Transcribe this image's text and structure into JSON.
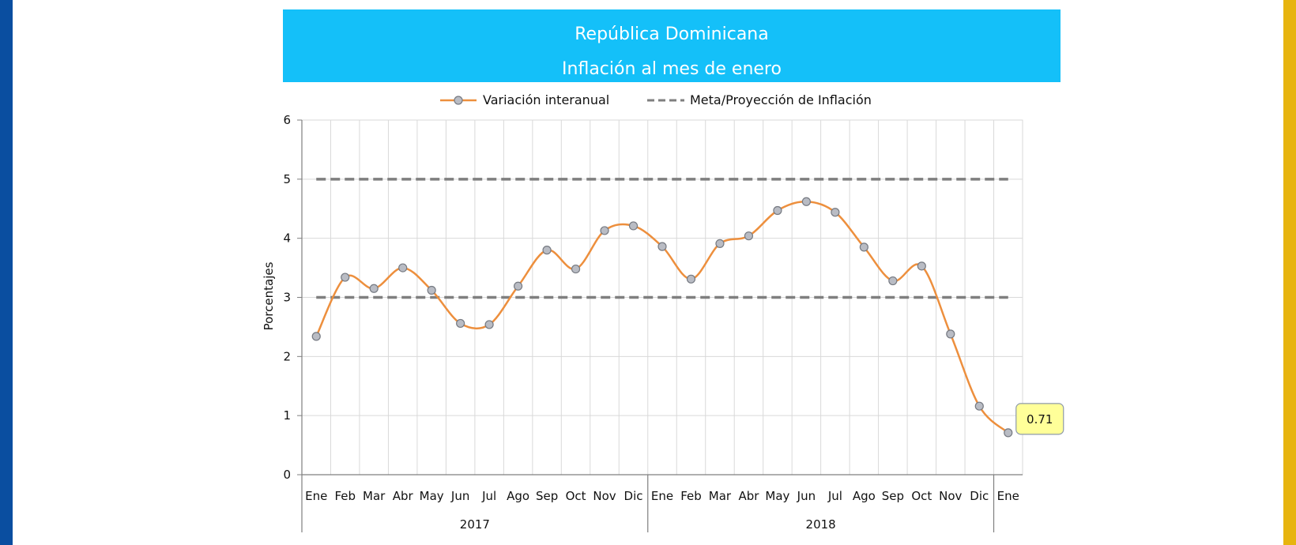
{
  "colors": {
    "title_bg": "#14c0f9",
    "series_line": "#ed8f3d",
    "series_marker": "#b9bcc4",
    "target_line": "#7f7f7f",
    "left_bar": "#0a4ea0",
    "right_bar": "#e7b40f",
    "callout_bg": "#ffff99"
  },
  "header": {
    "title": "República Dominicana",
    "subtitle": "Inflación al mes de enero"
  },
  "chart_data": {
    "type": "line",
    "title": "República Dominicana",
    "subtitle": "Inflación al mes de enero",
    "ylabel": "Porcentajes",
    "xlabel": "",
    "ylim": [
      0,
      6
    ],
    "yticks": [
      "0",
      "1",
      "2",
      "3",
      "4",
      "5",
      "6"
    ],
    "categories": [
      "Ene",
      "Feb",
      "Mar",
      "Abr",
      "May",
      "Jun",
      "Jul",
      "Ago",
      "Sep",
      "Oct",
      "Nov",
      "Dic",
      "Ene",
      "Feb",
      "Mar",
      "Abr",
      "May",
      "Jun",
      "Jul",
      "Ago",
      "Sep",
      "Oct",
      "Nov",
      "Dic",
      "Ene"
    ],
    "year_groups": [
      {
        "label": "2017",
        "start": 0,
        "end": 11
      },
      {
        "label": "2018",
        "start": 12,
        "end": 23
      }
    ],
    "grid": true,
    "legend_position": "top",
    "series": [
      {
        "name": "Variación interanual",
        "style": "smooth-line-markers",
        "values": [
          2.34,
          3.34,
          3.15,
          3.5,
          3.12,
          2.56,
          2.54,
          3.19,
          3.8,
          3.48,
          4.13,
          4.21,
          3.86,
          3.31,
          3.91,
          4.04,
          4.47,
          4.62,
          4.44,
          3.85,
          3.28,
          3.53,
          2.38,
          1.16,
          0.71
        ]
      },
      {
        "name": "Meta/Proyección de Inflación",
        "style": "dashed",
        "bands": [
          3,
          5
        ]
      }
    ],
    "annotations": [
      {
        "index": 24,
        "text": "0.71"
      }
    ]
  }
}
